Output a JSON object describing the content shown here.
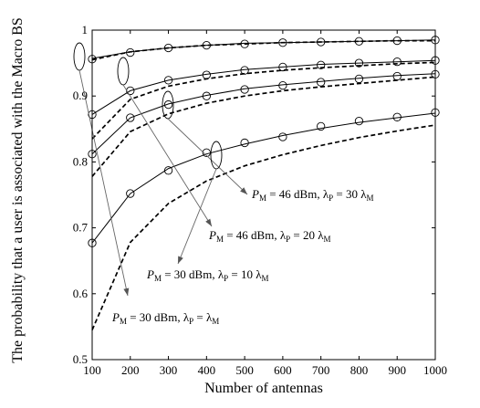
{
  "chart_data": {
    "type": "line",
    "xlabel": "Number of antennas",
    "ylabel": "The probability that a user is associated with the Macro BS",
    "xlim": [
      100,
      1000
    ],
    "ylim": [
      0.5,
      1.0
    ],
    "x_ticks": [
      100,
      200,
      300,
      400,
      500,
      600,
      700,
      800,
      900,
      1000
    ],
    "y_ticks": [
      0.5,
      0.6,
      0.7,
      0.8,
      0.9,
      1.0
    ],
    "x": [
      100,
      200,
      300,
      400,
      500,
      600,
      700,
      800,
      900,
      1000
    ],
    "grid": false,
    "legend": "none",
    "series": [
      {
        "style": "marker-circle",
        "values": [
          0.956,
          0.966,
          0.973,
          0.977,
          0.979,
          0.981,
          0.982,
          0.983,
          0.984,
          0.985
        ]
      },
      {
        "style": "solid",
        "values": [
          0.957,
          0.967,
          0.973,
          0.977,
          0.98,
          0.981,
          0.982,
          0.983,
          0.984,
          0.985
        ]
      },
      {
        "style": "dashed",
        "values": [
          0.955,
          0.967,
          0.973,
          0.977,
          0.979,
          0.981,
          0.982,
          0.983,
          0.984,
          0.984
        ]
      },
      {
        "style": "marker-circle",
        "values": [
          0.872,
          0.908,
          0.924,
          0.932,
          0.939,
          0.944,
          0.947,
          0.95,
          0.952,
          0.954
        ]
      },
      {
        "style": "solid",
        "values": [
          0.872,
          0.908,
          0.924,
          0.933,
          0.94,
          0.944,
          0.948,
          0.95,
          0.952,
          0.954
        ]
      },
      {
        "style": "dashed",
        "values": [
          0.835,
          0.895,
          0.915,
          0.926,
          0.934,
          0.939,
          0.943,
          0.946,
          0.949,
          0.951
        ]
      },
      {
        "style": "marker-circle",
        "values": [
          0.812,
          0.867,
          0.887,
          0.9,
          0.91,
          0.916,
          0.921,
          0.926,
          0.93,
          0.933
        ]
      },
      {
        "style": "solid",
        "values": [
          0.812,
          0.867,
          0.888,
          0.901,
          0.911,
          0.917,
          0.922,
          0.927,
          0.931,
          0.934
        ]
      },
      {
        "style": "dashed",
        "values": [
          0.778,
          0.846,
          0.873,
          0.889,
          0.9,
          0.908,
          0.914,
          0.919,
          0.924,
          0.929
        ]
      },
      {
        "style": "marker-circle",
        "values": [
          0.677,
          0.752,
          0.787,
          0.814,
          0.829,
          0.838,
          0.854,
          0.862,
          0.868,
          0.875
        ]
      },
      {
        "style": "solid",
        "values": [
          0.677,
          0.752,
          0.79,
          0.812,
          0.827,
          0.84,
          0.851,
          0.86,
          0.867,
          0.874
        ]
      },
      {
        "style": "dashed",
        "values": [
          0.545,
          0.678,
          0.737,
          0.771,
          0.794,
          0.811,
          0.825,
          0.837,
          0.847,
          0.856
        ]
      }
    ],
    "annotations": [
      {
        "parts": [
          "P",
          "M",
          " = 46 dBm,  λ",
          "P",
          " = 30 λ",
          "M"
        ]
      },
      {
        "parts": [
          "P",
          "M",
          " = 46 dBm,  λ",
          "P",
          " = 20 λ",
          "M"
        ]
      },
      {
        "parts": [
          "P",
          "M",
          " = 30 dBm,  λ",
          "P",
          " = 10 λ",
          "M"
        ]
      },
      {
        "parts": [
          "P",
          "M",
          " = 30 dBm,  λ",
          "P",
          " = λ",
          "M"
        ]
      }
    ]
  }
}
